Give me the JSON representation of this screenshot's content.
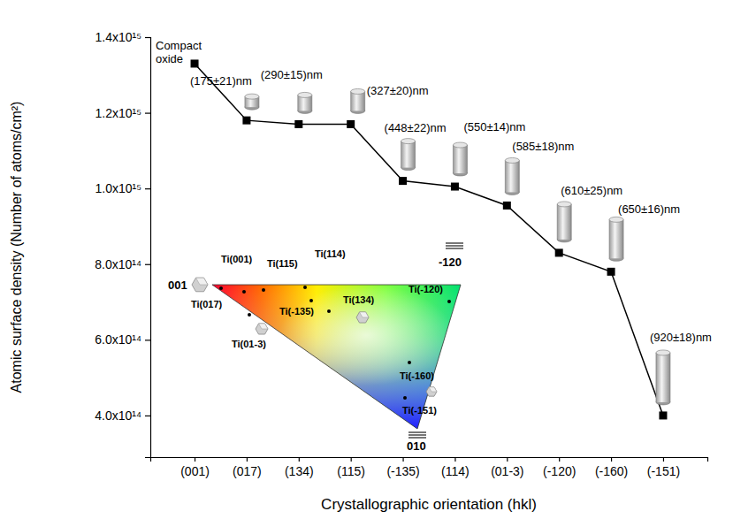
{
  "chart_data": {
    "type": "line",
    "categories": [
      "(001)",
      "(017)",
      "(134)",
      "(115)",
      "(-135)",
      "(114)",
      "(01-3)",
      "(-120)",
      "(-160)",
      "(-151)"
    ],
    "values": [
      1330000000000000,
      1180000000000000,
      1170000000000000,
      1170000000000000,
      1020000000000000,
      1005000000000000,
      955000000000000,
      830000000000000,
      780000000000000,
      400000000000000
    ],
    "annotations": [
      "Compact oxide",
      "(175±21)nm",
      "(290±15)nm",
      "(327±20)nm",
      "(448±22)nm",
      "(550±14)nm",
      "(585±18)nm",
      "(610±25)nm",
      "(650±16)nm",
      "(920±18)nm"
    ],
    "xlabel": "Crystallographic orientation (hkl)",
    "ylabel": "Atomic surface density (Number of atoms/cm²)",
    "ylim": [
      290000000000000,
      1400000000000000
    ],
    "yticks": [
      {
        "value": 400000000000000,
        "label": "4.0x10¹⁴"
      },
      {
        "value": 600000000000000,
        "label": "6.0x10¹⁴"
      },
      {
        "value": 800000000000000,
        "label": "8.0x10¹⁴"
      },
      {
        "value": 1000000000000000,
        "label": "1.0x10¹⁵"
      },
      {
        "value": 1200000000000000,
        "label": "1.2x10¹⁵"
      },
      {
        "value": 1400000000000000,
        "label": "1.4x10¹⁵"
      }
    ],
    "color": "#000000",
    "marker": "square",
    "grid": false
  },
  "inset": {
    "corner_labels": [
      "001",
      "-120",
      "010"
    ],
    "labels": [
      "Ti(001)",
      "Ti(115)",
      "Ti(114)",
      "Ti(017)",
      "Ti(01-3)",
      "Ti(-135)",
      "Ti(134)",
      "Ti(-120)",
      "Ti(-160)",
      "Ti(-151)"
    ]
  }
}
